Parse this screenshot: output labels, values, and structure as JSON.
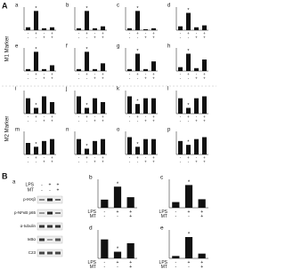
{
  "figure": {
    "panel_a": "A",
    "panel_b": "B",
    "m1": "M1 Marker",
    "m2": "M2 Marker"
  },
  "blot": {
    "label": "a",
    "lps_label": "LPS",
    "mt_label": "MT",
    "lps": [
      "-",
      "+",
      "+"
    ],
    "mt": [
      "-",
      "-",
      "+"
    ],
    "rows": [
      "p-IKKβ",
      "p-NFκB p65",
      "α-tubulin",
      "IκBα",
      "C23"
    ]
  },
  "chart_data": [
    {
      "type": "bar",
      "label": "a",
      "lps": [
        "-",
        "+",
        "-",
        "+"
      ],
      "mt": [
        "-",
        "-",
        "+",
        "+"
      ],
      "values": [
        0.15,
        1.0,
        0.1,
        0.15
      ],
      "color": "#111",
      "ylim": [
        0,
        1.2
      ],
      "annotation": "*",
      "annotation_index": 1
    },
    {
      "type": "bar",
      "label": "b",
      "lps": [
        "-",
        "+",
        "-",
        "+"
      ],
      "mt": [
        "-",
        "-",
        "+",
        "+"
      ],
      "values": [
        0.1,
        1.0,
        0.1,
        0.2
      ],
      "color": "#111",
      "ylim": [
        0,
        1.2
      ],
      "annotation": "*",
      "annotation_index": 1
    },
    {
      "type": "bar",
      "label": "c",
      "lps": [
        "-",
        "+",
        "-",
        "+"
      ],
      "mt": [
        "-",
        "-",
        "+",
        "+"
      ],
      "values": [
        0.1,
        1.0,
        0.05,
        0.1
      ],
      "color": "#111",
      "ylim": [
        0,
        1.2
      ],
      "annotation": "*",
      "annotation_index": 1
    },
    {
      "type": "bar",
      "label": "d",
      "lps": [
        "-",
        "+",
        "-",
        "+"
      ],
      "mt": [
        "-",
        "-",
        "+",
        "+"
      ],
      "values": [
        0.2,
        0.9,
        0.15,
        0.25
      ],
      "color": "#111",
      "ylim": [
        0,
        1.2
      ],
      "annotation": "*",
      "annotation_index": 1
    },
    {
      "type": "bar",
      "label": "e",
      "lps": [
        "-",
        "+",
        "-",
        "+"
      ],
      "mt": [
        "-",
        "-",
        "+",
        "+"
      ],
      "values": [
        0.1,
        1.0,
        0.1,
        0.3
      ],
      "color": "#111",
      "ylim": [
        0,
        1.2
      ],
      "annotation": "*",
      "annotation_index": 1
    },
    {
      "type": "bar",
      "label": "f",
      "lps": [
        "-",
        "+",
        "-",
        "+"
      ],
      "mt": [
        "-",
        "-",
        "+",
        "+"
      ],
      "values": [
        0.1,
        1.0,
        0.1,
        0.4
      ],
      "color": "#111",
      "ylim": [
        0,
        1.2
      ],
      "annotation": "*",
      "annotation_index": 1
    },
    {
      "type": "bar",
      "label": "g",
      "lps": [
        "-",
        "+",
        "-",
        "+"
      ],
      "mt": [
        "-",
        "-",
        "+",
        "+"
      ],
      "values": [
        0.1,
        0.9,
        0.1,
        0.5
      ],
      "color": "#111",
      "ylim": [
        0,
        1.2
      ],
      "annotation": "*",
      "annotation_index": 1
    },
    {
      "type": "bar",
      "label": "h",
      "lps": [
        "-",
        "+",
        "-",
        "+"
      ],
      "mt": [
        "-",
        "-",
        "+",
        "+"
      ],
      "values": [
        0.2,
        0.9,
        0.15,
        0.6
      ],
      "color": "#111",
      "ylim": [
        0,
        1.2
      ],
      "annotation": "*",
      "annotation_index": 1
    },
    {
      "type": "bar",
      "label": "i",
      "lps": [
        "-",
        "+",
        "-",
        "+"
      ],
      "mt": [
        "-",
        "-",
        "+",
        "+"
      ],
      "values": [
        0.8,
        0.3,
        0.9,
        0.6
      ],
      "color": "#111",
      "ylim": [
        0,
        1.2
      ],
      "annotation": "*",
      "annotation_index": 1
    },
    {
      "type": "bar",
      "label": "j",
      "lps": [
        "-",
        "+",
        "-",
        "+"
      ],
      "mt": [
        "-",
        "-",
        "+",
        "+"
      ],
      "values": [
        0.9,
        0.3,
        0.8,
        0.6
      ],
      "color": "#111",
      "ylim": [
        0,
        1.2
      ],
      "annotation": "*",
      "annotation_index": 1
    },
    {
      "type": "bar",
      "label": "k",
      "lps": [
        "-",
        "+",
        "-",
        "+"
      ],
      "mt": [
        "-",
        "-",
        "+",
        "+"
      ],
      "values": [
        0.9,
        0.5,
        0.8,
        0.8
      ],
      "color": "#111",
      "ylim": [
        0,
        1.2
      ],
      "annotation": "*",
      "annotation_index": 1
    },
    {
      "type": "bar",
      "label": "l",
      "lps": [
        "-",
        "+",
        "-",
        "+"
      ],
      "mt": [
        "-",
        "-",
        "+",
        "+"
      ],
      "values": [
        0.8,
        0.3,
        0.8,
        0.9
      ],
      "color": "#111",
      "ylim": [
        0,
        1.2
      ],
      "annotation": "*",
      "annotation_index": 1
    },
    {
      "type": "bar",
      "label": "m",
      "lps": [
        "-",
        "+",
        "-",
        "+"
      ],
      "mt": [
        "-",
        "-",
        "+",
        "+"
      ],
      "values": [
        0.6,
        0.4,
        0.7,
        0.8
      ],
      "color": "#111",
      "ylim": [
        0,
        1.2
      ],
      "annotation": "*",
      "annotation_index": 1
    },
    {
      "type": "bar",
      "label": "n",
      "lps": [
        "-",
        "+",
        "-",
        "+"
      ],
      "mt": [
        "-",
        "-",
        "+",
        "+"
      ],
      "values": [
        0.8,
        0.3,
        0.7,
        0.8
      ],
      "color": "#111",
      "ylim": [
        0,
        1.2
      ],
      "annotation": "*",
      "annotation_index": 1
    },
    {
      "type": "bar",
      "label": "o",
      "lps": [
        "-",
        "+",
        "-",
        "+"
      ],
      "mt": [
        "-",
        "-",
        "+",
        "+"
      ],
      "values": [
        0.9,
        0.4,
        0.8,
        0.8
      ],
      "color": "#111",
      "ylim": [
        0,
        1.2
      ],
      "annotation": "*",
      "annotation_index": 1
    },
    {
      "type": "bar",
      "label": "p",
      "lps": [
        "-",
        "+",
        "-",
        "+"
      ],
      "mt": [
        "-",
        "-",
        "+",
        "+"
      ],
      "values": [
        0.7,
        0.5,
        0.8,
        0.9
      ],
      "color": "#111",
      "ylim": [
        0,
        1.2
      ],
      "annotation": "*",
      "annotation_index": 1
    },
    {
      "type": "bar",
      "label": "b",
      "lps_label": "LPS",
      "mt_label": "MT",
      "lps": [
        "-",
        "+",
        "+"
      ],
      "mt": [
        "-",
        "-",
        "+"
      ],
      "values": [
        1.0,
        2.6,
        1.3
      ],
      "color": "#111",
      "ylim": [
        0,
        3.5
      ],
      "annotation": "*",
      "annotation_index": 1
    },
    {
      "type": "bar",
      "label": "c",
      "lps_label": "LPS",
      "mt_label": "MT",
      "lps": [
        "-",
        "+",
        "+"
      ],
      "mt": [
        "-",
        "-",
        "+"
      ],
      "values": [
        1.0,
        4.0,
        1.5
      ],
      "color": "#111",
      "ylim": [
        0,
        5
      ],
      "annotation": "*",
      "annotation_index": 1
    },
    {
      "type": "bar",
      "label": "d",
      "lps_label": "LPS",
      "mt_label": "MT",
      "lps": [
        "-",
        "+",
        "+"
      ],
      "mt": [
        "-",
        "-",
        "+"
      ],
      "values": [
        1.0,
        0.35,
        0.8
      ],
      "color": "#111",
      "ylim": [
        0,
        1.5
      ],
      "annotation": "*",
      "annotation_index": 1
    },
    {
      "type": "bar",
      "label": "e",
      "lps_label": "LPS",
      "mt_label": "MT",
      "lps": [
        "-",
        "+",
        "+"
      ],
      "mt": [
        "-",
        "-",
        "+"
      ],
      "values": [
        1.0,
        9.0,
        2.0
      ],
      "color": "#111",
      "ylim": [
        0,
        12
      ],
      "annotation": "*",
      "annotation_index": 1
    }
  ]
}
